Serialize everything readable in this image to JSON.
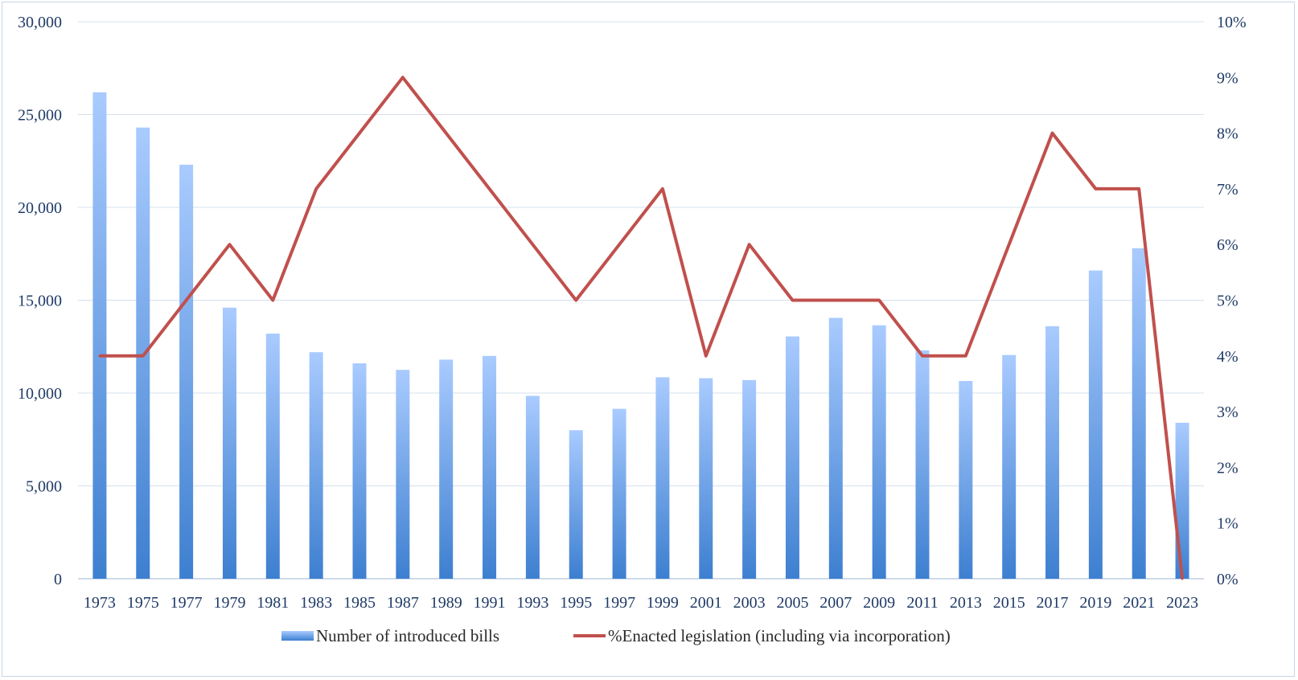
{
  "chart_data": {
    "type": "bar",
    "title": "",
    "xlabel": "",
    "categories": [
      "1973",
      "1975",
      "1977",
      "1979",
      "1981",
      "1983",
      "1985",
      "1987",
      "1989",
      "1991",
      "1993",
      "1995",
      "1997",
      "1999",
      "2001",
      "2003",
      "2005",
      "2007",
      "2009",
      "2011",
      "2013",
      "2015",
      "2017",
      "2019",
      "2021",
      "2023"
    ],
    "series": [
      {
        "name": "Number of introduced bills",
        "type": "bar",
        "axis": "left",
        "color": "#5b9bd5",
        "values": [
          26200,
          24300,
          22300,
          14600,
          13200,
          12200,
          11600,
          11250,
          11800,
          12000,
          9850,
          8000,
          9150,
          10850,
          10800,
          10700,
          13050,
          14050,
          13650,
          12300,
          10650,
          12050,
          13600,
          16600,
          17800,
          8400
        ]
      },
      {
        "name": "%Enacted legislation (including via incorporation)",
        "type": "line",
        "axis": "right",
        "color": "#c0504d",
        "values": [
          4,
          4,
          5,
          6,
          5,
          7,
          8,
          9,
          8,
          7,
          6,
          5,
          6,
          7,
          4,
          6,
          5,
          5,
          5,
          4,
          4,
          6,
          8,
          7,
          7,
          0
        ]
      }
    ],
    "y_left": {
      "range": [
        0,
        30000
      ],
      "ticks": [
        0,
        5000,
        10000,
        15000,
        20000,
        25000,
        30000
      ],
      "tick_labels": [
        "0",
        "5,000",
        "10,000",
        "15,000",
        "20,000",
        "25,000",
        "30,000"
      ]
    },
    "y_right": {
      "range": [
        0,
        10
      ],
      "ticks": [
        0,
        1,
        2,
        3,
        4,
        5,
        6,
        7,
        8,
        9,
        10
      ],
      "tick_labels": [
        "0%",
        "1%",
        "2%",
        "3%",
        "4%",
        "5%",
        "6%",
        "7%",
        "8%",
        "9%",
        "10%"
      ]
    },
    "grid": true,
    "legend": "bottom"
  }
}
